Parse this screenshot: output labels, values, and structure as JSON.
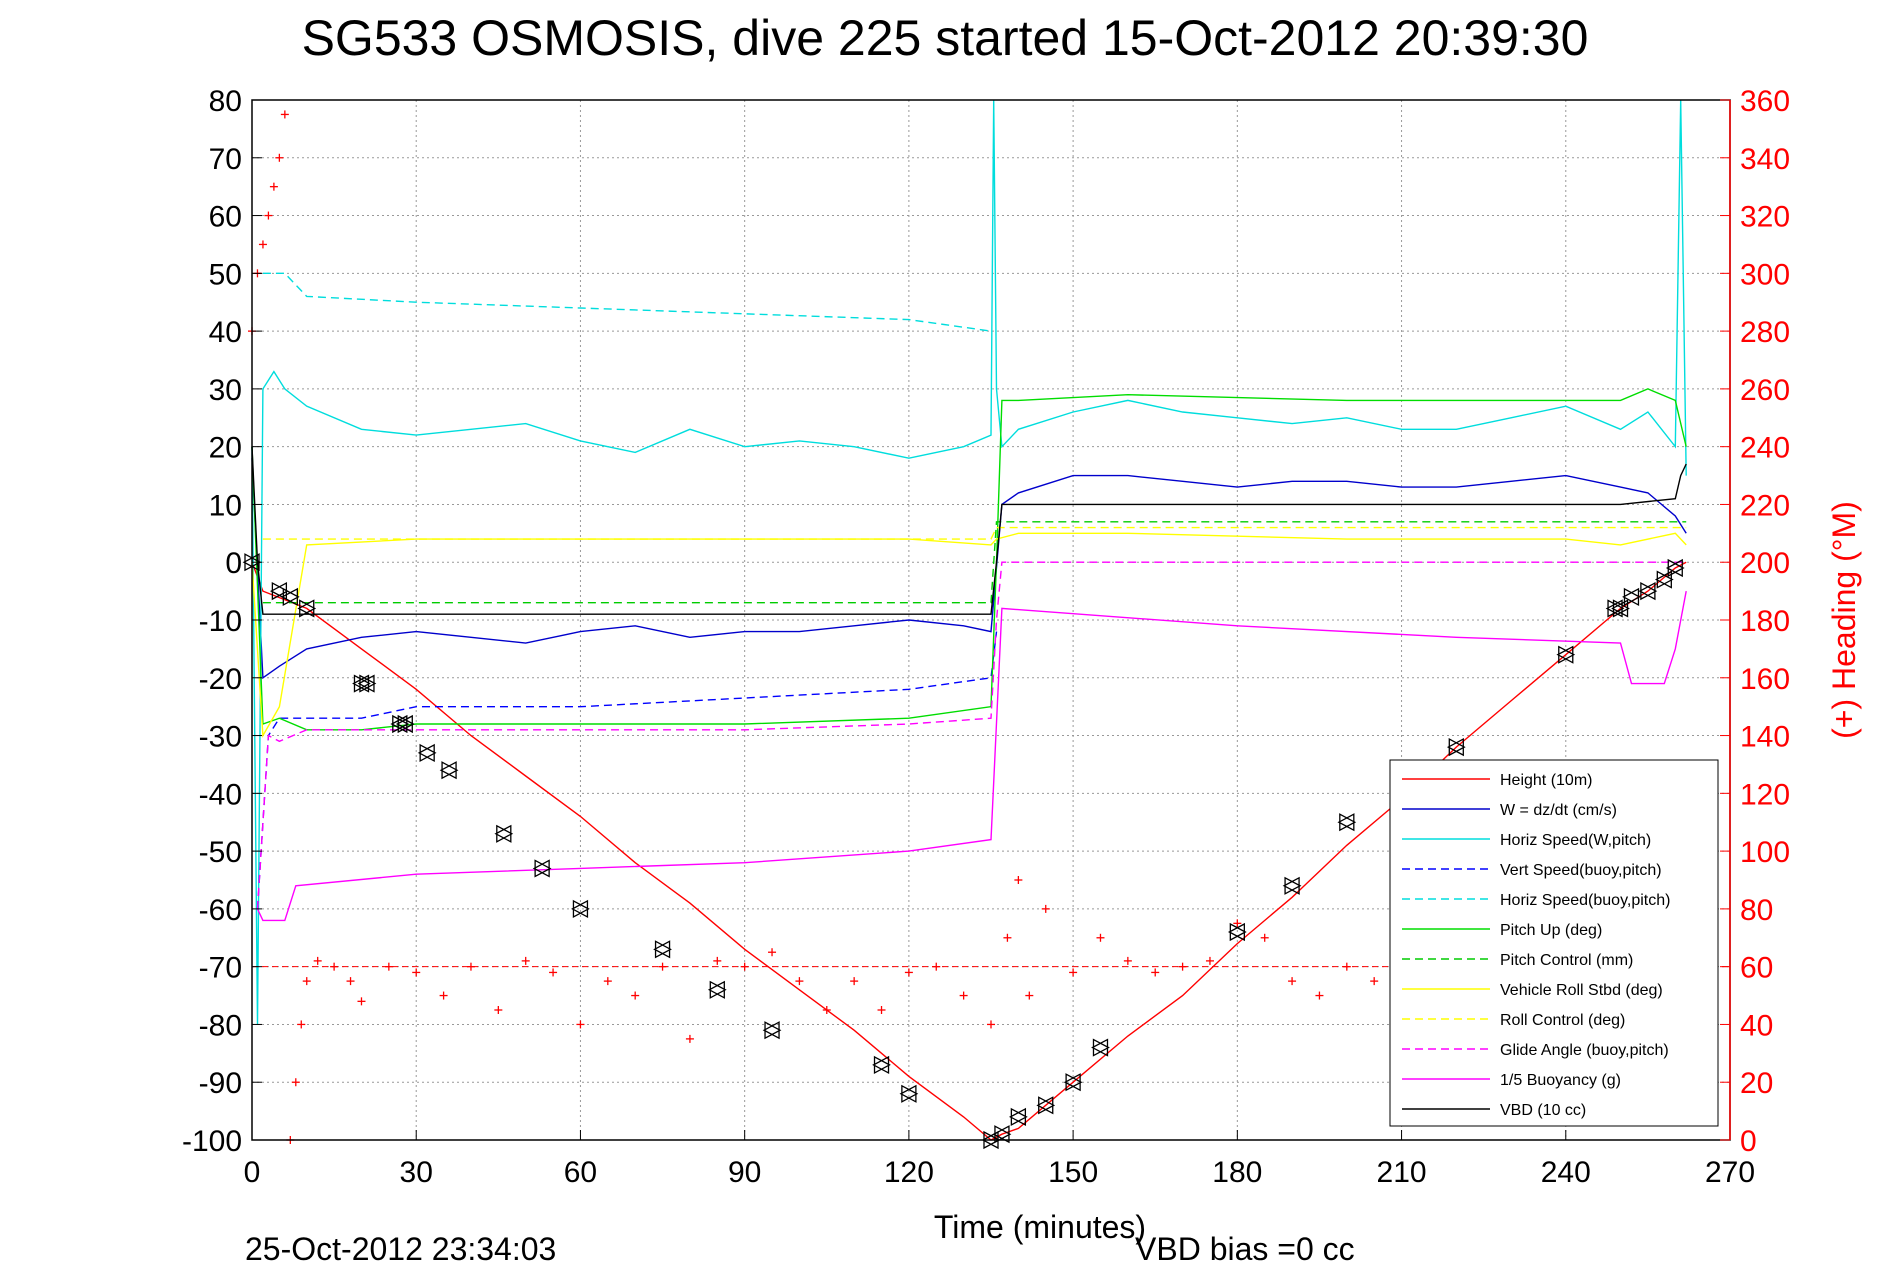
{
  "chart_data": {
    "type": "line",
    "title": "SG533 OSMOSIS, dive 225 started 15-Oct-2012 20:39:30",
    "xlabel": "Time (minutes)",
    "ylabel_right": "(+) Heading (°M)",
    "footer_left": "25-Oct-2012 23:34:03",
    "footer_right": "VBD bias =0 cc",
    "xlim": [
      0,
      270
    ],
    "ylim": [
      -100,
      80
    ],
    "ylim_right": [
      0,
      360
    ],
    "x_ticks": [
      0,
      30,
      60,
      90,
      120,
      150,
      180,
      210,
      240,
      270
    ],
    "y_ticks": [
      80,
      70,
      60,
      50,
      40,
      30,
      20,
      10,
      0,
      -10,
      -20,
      -30,
      -40,
      -50,
      -60,
      -70,
      -80,
      -90,
      -100
    ],
    "y_ticks_right": [
      360,
      340,
      320,
      300,
      280,
      260,
      240,
      220,
      200,
      180,
      160,
      140,
      120,
      100,
      80,
      60,
      40,
      20,
      0
    ],
    "grid": true,
    "legend_position": "bottom-right",
    "series": [
      {
        "name": "Height (10m)",
        "color": "#ff0000",
        "style": "solid",
        "axis": "left",
        "x": [
          0,
          2,
          10,
          20,
          30,
          40,
          50,
          60,
          70,
          80,
          90,
          100,
          110,
          120,
          130,
          135,
          137,
          140,
          145,
          150,
          160,
          170,
          180,
          190,
          200,
          210,
          220,
          230,
          240,
          250,
          255,
          260,
          262
        ],
        "y": [
          0,
          -5,
          -8,
          -15,
          -22,
          -30,
          -37,
          -44,
          -52,
          -59,
          -67,
          -74,
          -81,
          -89,
          -96,
          -100,
          -99,
          -98,
          -94,
          -90,
          -82,
          -75,
          -66,
          -58,
          -49,
          -41,
          -32,
          -24,
          -16,
          -8,
          -5,
          -1,
          0
        ]
      },
      {
        "name": "W = dz/dt (cm/s)",
        "color": "#0000cc",
        "style": "solid",
        "axis": "left",
        "x": [
          0,
          2,
          5,
          10,
          20,
          30,
          40,
          50,
          60,
          70,
          80,
          90,
          100,
          110,
          120,
          130,
          135,
          137,
          140,
          150,
          160,
          170,
          180,
          190,
          200,
          210,
          220,
          230,
          240,
          250,
          255,
          260,
          262
        ],
        "y": [
          18,
          -20,
          -18,
          -15,
          -13,
          -12,
          -13,
          -14,
          -12,
          -11,
          -13,
          -12,
          -12,
          -11,
          -10,
          -11,
          -12,
          10,
          12,
          15,
          15,
          14,
          13,
          14,
          14,
          13,
          13,
          14,
          15,
          13,
          12,
          8,
          5
        ]
      },
      {
        "name": "Horiz Speed(W,pitch)",
        "color": "#00dddd",
        "style": "solid",
        "axis": "left",
        "x": [
          0,
          1,
          2,
          4,
          6,
          10,
          20,
          30,
          40,
          50,
          60,
          70,
          80,
          90,
          100,
          110,
          120,
          130,
          135,
          135.5,
          136,
          137,
          140,
          150,
          160,
          170,
          180,
          190,
          200,
          210,
          220,
          230,
          240,
          250,
          255,
          260,
          261,
          262
        ],
        "y": [
          20,
          -80,
          30,
          33,
          30,
          27,
          23,
          22,
          23,
          24,
          21,
          19,
          23,
          20,
          21,
          20,
          18,
          20,
          22,
          80,
          30,
          20,
          23,
          26,
          28,
          26,
          25,
          24,
          25,
          23,
          23,
          25,
          27,
          23,
          26,
          20,
          80,
          15
        ]
      },
      {
        "name": "Vert Speed(buoy,pitch)",
        "color": "#0000ff",
        "style": "dashed",
        "axis": "left",
        "x": [
          1,
          3,
          5,
          10,
          20,
          30,
          40,
          60,
          80,
          100,
          120,
          135,
          136
        ],
        "y": [
          -60,
          -30,
          -27,
          -27,
          -27,
          -25,
          -25,
          -25,
          -24,
          -23,
          -22,
          -20,
          -12
        ]
      },
      {
        "name": "Horiz Speed(buoy,pitch)",
        "color": "#00dddd",
        "style": "dashed",
        "axis": "left",
        "x": [
          2,
          4,
          6,
          10,
          30,
          60,
          90,
          120,
          135
        ],
        "y": [
          50,
          50,
          50,
          46,
          45,
          44,
          43,
          42,
          40
        ]
      },
      {
        "name": "Pitch Up (deg)",
        "color": "#00dd00",
        "style": "solid",
        "axis": "left",
        "x": [
          0,
          2,
          5,
          10,
          20,
          30,
          60,
          90,
          120,
          135,
          136,
          137,
          140,
          160,
          200,
          240,
          250,
          255,
          260,
          262
        ],
        "y": [
          20,
          -28,
          -27,
          -29,
          -29,
          -28,
          -28,
          -28,
          -27,
          -25,
          0,
          28,
          28,
          29,
          28,
          28,
          28,
          30,
          28,
          20
        ]
      },
      {
        "name": "Pitch Control (mm)",
        "color": "#00cc00",
        "style": "dashed",
        "axis": "left",
        "x": [
          2,
          135,
          136,
          262
        ],
        "y": [
          -7,
          -7,
          7,
          7
        ]
      },
      {
        "name": "Vehicle Roll Stbd (deg)",
        "color": "#ffff00",
        "style": "solid",
        "axis": "left",
        "x": [
          0,
          2,
          5,
          10,
          30,
          60,
          90,
          120,
          135,
          136,
          140,
          160,
          200,
          240,
          250,
          260,
          262
        ],
        "y": [
          0,
          -30,
          -25,
          3,
          4,
          4,
          4,
          4,
          3,
          4,
          5,
          5,
          4,
          4,
          3,
          5,
          3
        ]
      },
      {
        "name": "Roll Control (deg)",
        "color": "#ffff00",
        "style": "dashed",
        "axis": "left",
        "x": [
          2,
          135,
          136,
          262
        ],
        "y": [
          4,
          4,
          6,
          6
        ]
      },
      {
        "name": "Glide Angle (buoy,pitch)",
        "color": "#ff00ff",
        "style": "dashed",
        "axis": "left",
        "x": [
          1,
          3,
          5,
          10,
          30,
          60,
          90,
          120,
          135,
          136,
          137,
          262
        ],
        "y": [
          -60,
          -30,
          -31,
          -29,
          -29,
          -29,
          -29,
          -28,
          -27,
          -10,
          0,
          0
        ]
      },
      {
        "name": "1/5 Buoyancy (g)",
        "color": "#ff00ff",
        "style": "solid",
        "axis": "left",
        "x": [
          1,
          2,
          5,
          6,
          8,
          30,
          60,
          90,
          120,
          135,
          137,
          180,
          220,
          250,
          252,
          258,
          260,
          262
        ],
        "y": [
          -60,
          -62,
          -62,
          -62,
          -56,
          -54,
          -53,
          -52,
          -50,
          -48,
          -8,
          -11,
          -13,
          -14,
          -21,
          -21,
          -15,
          -5
        ]
      },
      {
        "name": "VBD (10 cc)",
        "color": "#000000",
        "style": "solid",
        "axis": "left",
        "x": [
          0,
          1,
          2,
          135,
          136,
          137,
          250,
          260,
          261,
          262
        ],
        "y": [
          20,
          0,
          -9,
          -9,
          0,
          10,
          10,
          11,
          15,
          17
        ]
      }
    ],
    "heading": {
      "name": "Heading",
      "color": "#ff0000",
      "marker": "+",
      "axis": "right",
      "x": [
        0,
        1,
        2,
        3,
        4,
        5,
        6,
        7,
        8,
        9,
        10,
        12,
        15,
        18,
        20,
        25,
        30,
        35,
        40,
        45,
        50,
        55,
        60,
        65,
        70,
        75,
        80,
        85,
        90,
        95,
        100,
        105,
        110,
        115,
        120,
        125,
        130,
        135,
        138,
        140,
        142,
        145,
        150,
        155,
        160,
        165,
        170,
        175,
        180,
        185,
        190,
        195,
        200,
        205,
        210
      ],
      "y": [
        280,
        300,
        310,
        320,
        330,
        340,
        355,
        0,
        20,
        40,
        55,
        62,
        60,
        55,
        48,
        60,
        58,
        50,
        60,
        45,
        62,
        58,
        40,
        55,
        50,
        60,
        35,
        62,
        60,
        65,
        55,
        45,
        55,
        45,
        58,
        60,
        50,
        40,
        70,
        90,
        50,
        80,
        58,
        70,
        62,
        58,
        60,
        62,
        75,
        70,
        55,
        50,
        60,
        55,
        68
      ]
    },
    "markers": {
      "name": "Height samples",
      "color": "#000000",
      "x": [
        0,
        5,
        7,
        10,
        20,
        21,
        27,
        28,
        32,
        36,
        46,
        53,
        60,
        75,
        85,
        95,
        115,
        120,
        135,
        137,
        140,
        145,
        150,
        155,
        180,
        190,
        200,
        220,
        240,
        249,
        250,
        252,
        255,
        258,
        260
      ],
      "y": [
        0,
        -5,
        -6,
        -8,
        -21,
        -21,
        -28,
        -28,
        -33,
        -36,
        -47,
        -53,
        -60,
        -67,
        -74,
        -81,
        -87,
        -92,
        -100,
        -99,
        -96,
        -94,
        -90,
        -84,
        -64,
        -56,
        -45,
        -32,
        -16,
        -8,
        -8,
        -6,
        -5,
        -3,
        -1
      ]
    }
  }
}
